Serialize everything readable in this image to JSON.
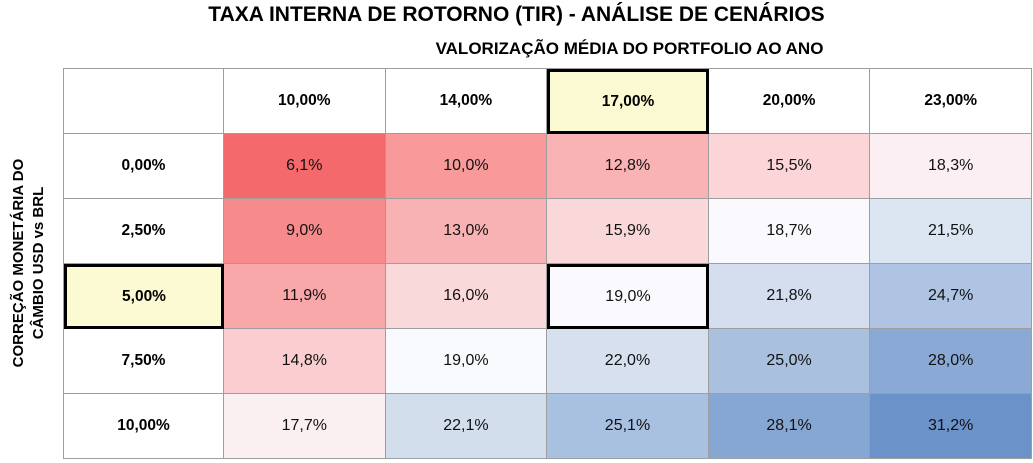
{
  "title": "TAXA INTERNA DE ROTORNO (TIR) - ANÁLISE DE CENÁRIOS",
  "subtitle": "VALORIZAÇÃO MÉDIA DO PORTFOLIO AO ANO",
  "y_axis": {
    "line1": "CORREÇÃO MONETÁRIA DO",
    "line2": "CÂMBIO USD vs BRL"
  },
  "chart_data": {
    "type": "heatmap",
    "x_axis_title": "VALORIZAÇÃO MÉDIA DO PORTFOLIO AO ANO",
    "y_axis_title": "CORREÇÃO MONETÁRIA DO CÂMBIO USD vs BRL",
    "col_headers": [
      "10,00%",
      "14,00%",
      "17,00%",
      "20,00%",
      "23,00%"
    ],
    "row_headers": [
      "0,00%",
      "2,50%",
      "5,00%",
      "7,50%",
      "10,00%"
    ],
    "values_display": [
      [
        "6,1%",
        "10,0%",
        "12,8%",
        "15,5%",
        "18,3%"
      ],
      [
        "9,0%",
        "13,0%",
        "15,9%",
        "18,7%",
        "21,5%"
      ],
      [
        "11,9%",
        "16,0%",
        "19,0%",
        "21,8%",
        "24,7%"
      ],
      [
        "14,8%",
        "19,0%",
        "22,0%",
        "25,0%",
        "28,0%"
      ],
      [
        "17,7%",
        "22,1%",
        "25,1%",
        "28,1%",
        "31,2%"
      ]
    ],
    "values_numeric_pct": [
      [
        6.1,
        10.0,
        12.8,
        15.5,
        18.3
      ],
      [
        9.0,
        13.0,
        15.9,
        18.7,
        21.5
      ],
      [
        11.9,
        16.0,
        19.0,
        21.8,
        24.7
      ],
      [
        14.8,
        19.0,
        22.0,
        25.0,
        28.0
      ],
      [
        17.7,
        22.1,
        25.1,
        28.1,
        31.2
      ]
    ],
    "cell_colors": [
      [
        "#F4696B",
        "#F8999A",
        "#F9B3B5",
        "#FBD5D8",
        "#FBEFF3"
      ],
      [
        "#F78A8B",
        "#F9B2B3",
        "#FAD8DA",
        "#FAF9FD",
        "#DCE5F2"
      ],
      [
        "#F8A8A9",
        "#FAD9DB",
        "#FAFAFE",
        "#D4DEEF",
        "#AFC4E2"
      ],
      [
        "#FACED1",
        "#F9FAFD",
        "#D6E0EE",
        "#A9C0DF",
        "#8AA9D4"
      ],
      [
        "#FAEFF1",
        "#D3DEED",
        "#A9C1E0",
        "#87A7D3",
        "#6B92C9"
      ]
    ],
    "highlighted": {
      "column_index": 2,
      "row_index": 2,
      "selected_cell_row": 2,
      "selected_cell_col": 2,
      "selected_cell_value": "19,0%",
      "header_fill": "#FBFAD2",
      "border_color": "#000000"
    },
    "grid_line_color": "#9E9E9E",
    "colorscale": "red-white-blue",
    "legend": "none"
  }
}
